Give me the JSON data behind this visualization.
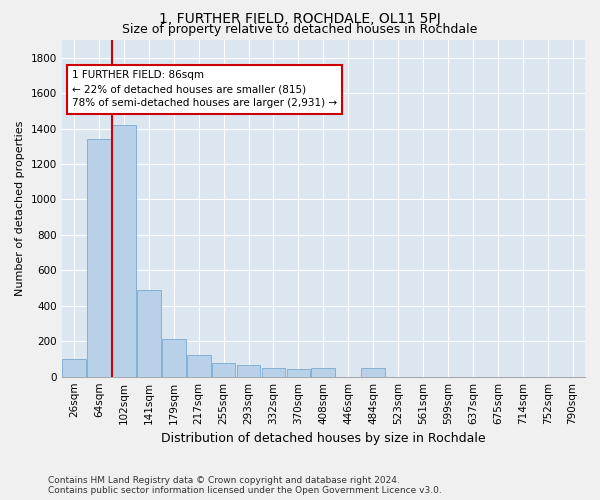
{
  "title": "1, FURTHER FIELD, ROCHDALE, OL11 5PJ",
  "subtitle": "Size of property relative to detached houses in Rochdale",
  "xlabel": "Distribution of detached houses by size in Rochdale",
  "ylabel": "Number of detached properties",
  "footer_line1": "Contains HM Land Registry data © Crown copyright and database right 2024.",
  "footer_line2": "Contains public sector information licensed under the Open Government Licence v3.0.",
  "bar_labels": [
    "26sqm",
    "64sqm",
    "102sqm",
    "141sqm",
    "179sqm",
    "217sqm",
    "255sqm",
    "293sqm",
    "332sqm",
    "370sqm",
    "408sqm",
    "446sqm",
    "484sqm",
    "523sqm",
    "561sqm",
    "599sqm",
    "637sqm",
    "675sqm",
    "714sqm",
    "752sqm",
    "790sqm"
  ],
  "bar_values": [
    100,
    1340,
    1420,
    490,
    215,
    120,
    75,
    65,
    50,
    45,
    50,
    0,
    50,
    0,
    0,
    0,
    0,
    0,
    0,
    0,
    0
  ],
  "bar_color": "#b8d0e8",
  "bar_edge_color": "#7aaad0",
  "annotation_text": "1 FURTHER FIELD: 86sqm\n← 22% of detached houses are smaller (815)\n78% of semi-detached houses are larger (2,931) →",
  "vline_color": "#cc0000",
  "vline_position": 1.5,
  "annotation_box_facecolor": "#ffffff",
  "annotation_box_edgecolor": "#cc0000",
  "ylim": [
    0,
    1900
  ],
  "yticks": [
    0,
    200,
    400,
    600,
    800,
    1000,
    1200,
    1400,
    1600,
    1800
  ],
  "background_color": "#dce6f0",
  "grid_color": "#ffffff",
  "title_fontsize": 10,
  "subtitle_fontsize": 9,
  "ylabel_fontsize": 8,
  "xlabel_fontsize": 9,
  "tick_fontsize": 7.5,
  "footer_fontsize": 6.5
}
